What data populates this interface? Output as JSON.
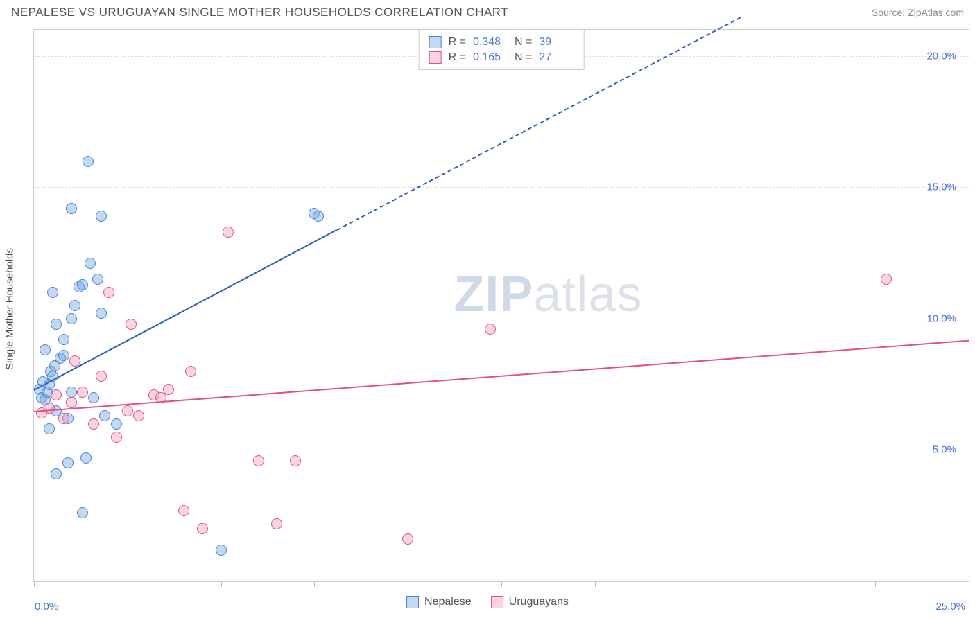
{
  "title": "NEPALESE VS URUGUAYAN SINGLE MOTHER HOUSEHOLDS CORRELATION CHART",
  "source": "Source: ZipAtlas.com",
  "watermark_a": "ZIP",
  "watermark_b": "atlas",
  "ylabel": "Single Mother Households",
  "chart": {
    "type": "scatter",
    "background_color": "#ffffff",
    "grid_color": "#dddddd",
    "border_color": "#cccccc",
    "xlim": [
      0,
      25
    ],
    "ylim": [
      0,
      21
    ],
    "yticks": [
      {
        "v": 5,
        "label": "5.0%"
      },
      {
        "v": 10,
        "label": "10.0%"
      },
      {
        "v": 15,
        "label": "15.0%"
      },
      {
        "v": 20,
        "label": "20.0%"
      }
    ],
    "xticks_major": [
      0,
      2.5,
      5,
      7.5,
      10,
      12.5,
      15,
      17.5,
      20,
      22.5,
      25
    ],
    "xtick_labels": {
      "first": "0.0%",
      "last": "25.0%"
    },
    "point_radius": 8,
    "series": [
      {
        "key": "nepalese",
        "label": "Nepalese",
        "fill": "rgba(120,170,225,0.45)",
        "stroke": "#4a86d0",
        "trend_color": "#2b5fb0",
        "R": "0.348",
        "N": "39",
        "trend": {
          "x1": 0,
          "y1": 7.3,
          "x2": 8.1,
          "y2": 13.4,
          "dash_to_x": 18.9,
          "dash_to_y": 21.5
        },
        "points": [
          [
            0.15,
            7.3
          ],
          [
            0.2,
            7.0
          ],
          [
            0.25,
            7.6
          ],
          [
            0.3,
            6.9
          ],
          [
            0.35,
            7.2
          ],
          [
            0.4,
            7.5
          ],
          [
            0.45,
            8.0
          ],
          [
            0.5,
            7.8
          ],
          [
            0.55,
            8.2
          ],
          [
            0.6,
            6.5
          ],
          [
            0.7,
            8.5
          ],
          [
            0.8,
            9.2
          ],
          [
            0.9,
            6.2
          ],
          [
            1.0,
            10.0
          ],
          [
            1.1,
            10.5
          ],
          [
            1.2,
            11.2
          ],
          [
            1.3,
            11.3
          ],
          [
            1.5,
            12.1
          ],
          [
            1.6,
            7.0
          ],
          [
            0.9,
            4.5
          ],
          [
            0.6,
            4.1
          ],
          [
            1.4,
            4.7
          ],
          [
            1.0,
            14.2
          ],
          [
            2.2,
            6.0
          ],
          [
            1.7,
            11.5
          ],
          [
            1.3,
            2.6
          ],
          [
            0.4,
            5.8
          ],
          [
            1.8,
            10.2
          ],
          [
            0.8,
            8.6
          ],
          [
            1.0,
            7.2
          ],
          [
            1.8,
            13.9
          ],
          [
            1.9,
            6.3
          ],
          [
            0.6,
            9.8
          ],
          [
            1.45,
            16.0
          ],
          [
            5.0,
            1.2
          ],
          [
            7.5,
            14.0
          ],
          [
            7.6,
            13.9
          ],
          [
            0.3,
            8.8
          ],
          [
            0.5,
            11.0
          ]
        ]
      },
      {
        "key": "uruguayans",
        "label": "Uruguayans",
        "fill": "rgba(240,150,180,0.40)",
        "stroke": "#e05080",
        "trend_color": "#e05080",
        "R": "0.165",
        "N": "27",
        "trend": {
          "x1": 0,
          "y1": 6.5,
          "x2": 25,
          "y2": 9.2
        },
        "points": [
          [
            0.2,
            6.4
          ],
          [
            0.4,
            6.6
          ],
          [
            0.6,
            7.1
          ],
          [
            0.8,
            6.2
          ],
          [
            1.0,
            6.8
          ],
          [
            1.3,
            7.2
          ],
          [
            1.6,
            6.0
          ],
          [
            1.8,
            7.8
          ],
          [
            2.0,
            11.0
          ],
          [
            2.5,
            6.5
          ],
          [
            2.6,
            9.8
          ],
          [
            3.2,
            7.1
          ],
          [
            3.4,
            7.0
          ],
          [
            3.6,
            7.3
          ],
          [
            4.0,
            2.7
          ],
          [
            4.2,
            8.0
          ],
          [
            4.5,
            2.0
          ],
          [
            5.2,
            13.3
          ],
          [
            6.0,
            4.6
          ],
          [
            6.5,
            2.2
          ],
          [
            7.0,
            4.6
          ],
          [
            10.0,
            1.6
          ],
          [
            12.2,
            9.6
          ],
          [
            22.8,
            11.5
          ],
          [
            1.1,
            8.4
          ],
          [
            2.2,
            5.5
          ],
          [
            2.8,
            6.3
          ]
        ]
      }
    ]
  },
  "swatch": {
    "blue_fill": "rgba(120,170,225,0.55)",
    "blue_border": "#4a86d0",
    "pink_fill": "rgba(240,150,180,0.50)",
    "pink_border": "#e05080"
  }
}
